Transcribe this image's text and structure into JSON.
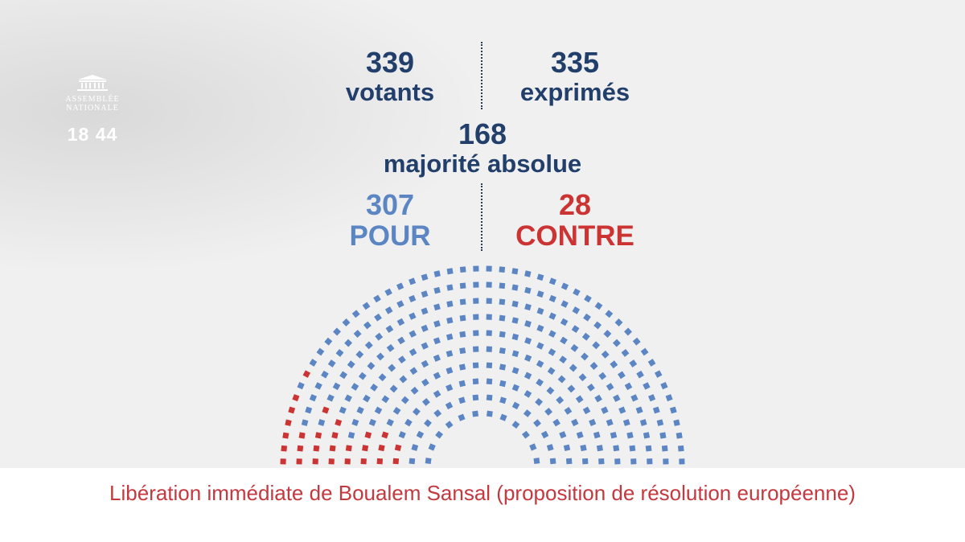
{
  "logo": {
    "name_line1": "ASSEMBLÉE",
    "name_line2": "NATIONALE",
    "year": "18 44"
  },
  "stats": {
    "votants": {
      "value": "339",
      "label": "votants"
    },
    "exprimes": {
      "value": "335",
      "label": "exprimés"
    },
    "majorite": {
      "value": "168",
      "label": "majorité absolue"
    },
    "pour": {
      "value": "307",
      "label": "POUR"
    },
    "contre": {
      "value": "28",
      "label": "CONTRE"
    }
  },
  "vote": {
    "pour": 307,
    "contre": 28,
    "votants": 339,
    "exprimes": 335
  },
  "colors": {
    "pour": "#5b86c3",
    "contre": "#cc3333",
    "absent": "#d6d6d6",
    "text": "#213f6a"
  },
  "caption": "Libération immédiate de Boualem Sansal (proposition de résolution européenne)"
}
